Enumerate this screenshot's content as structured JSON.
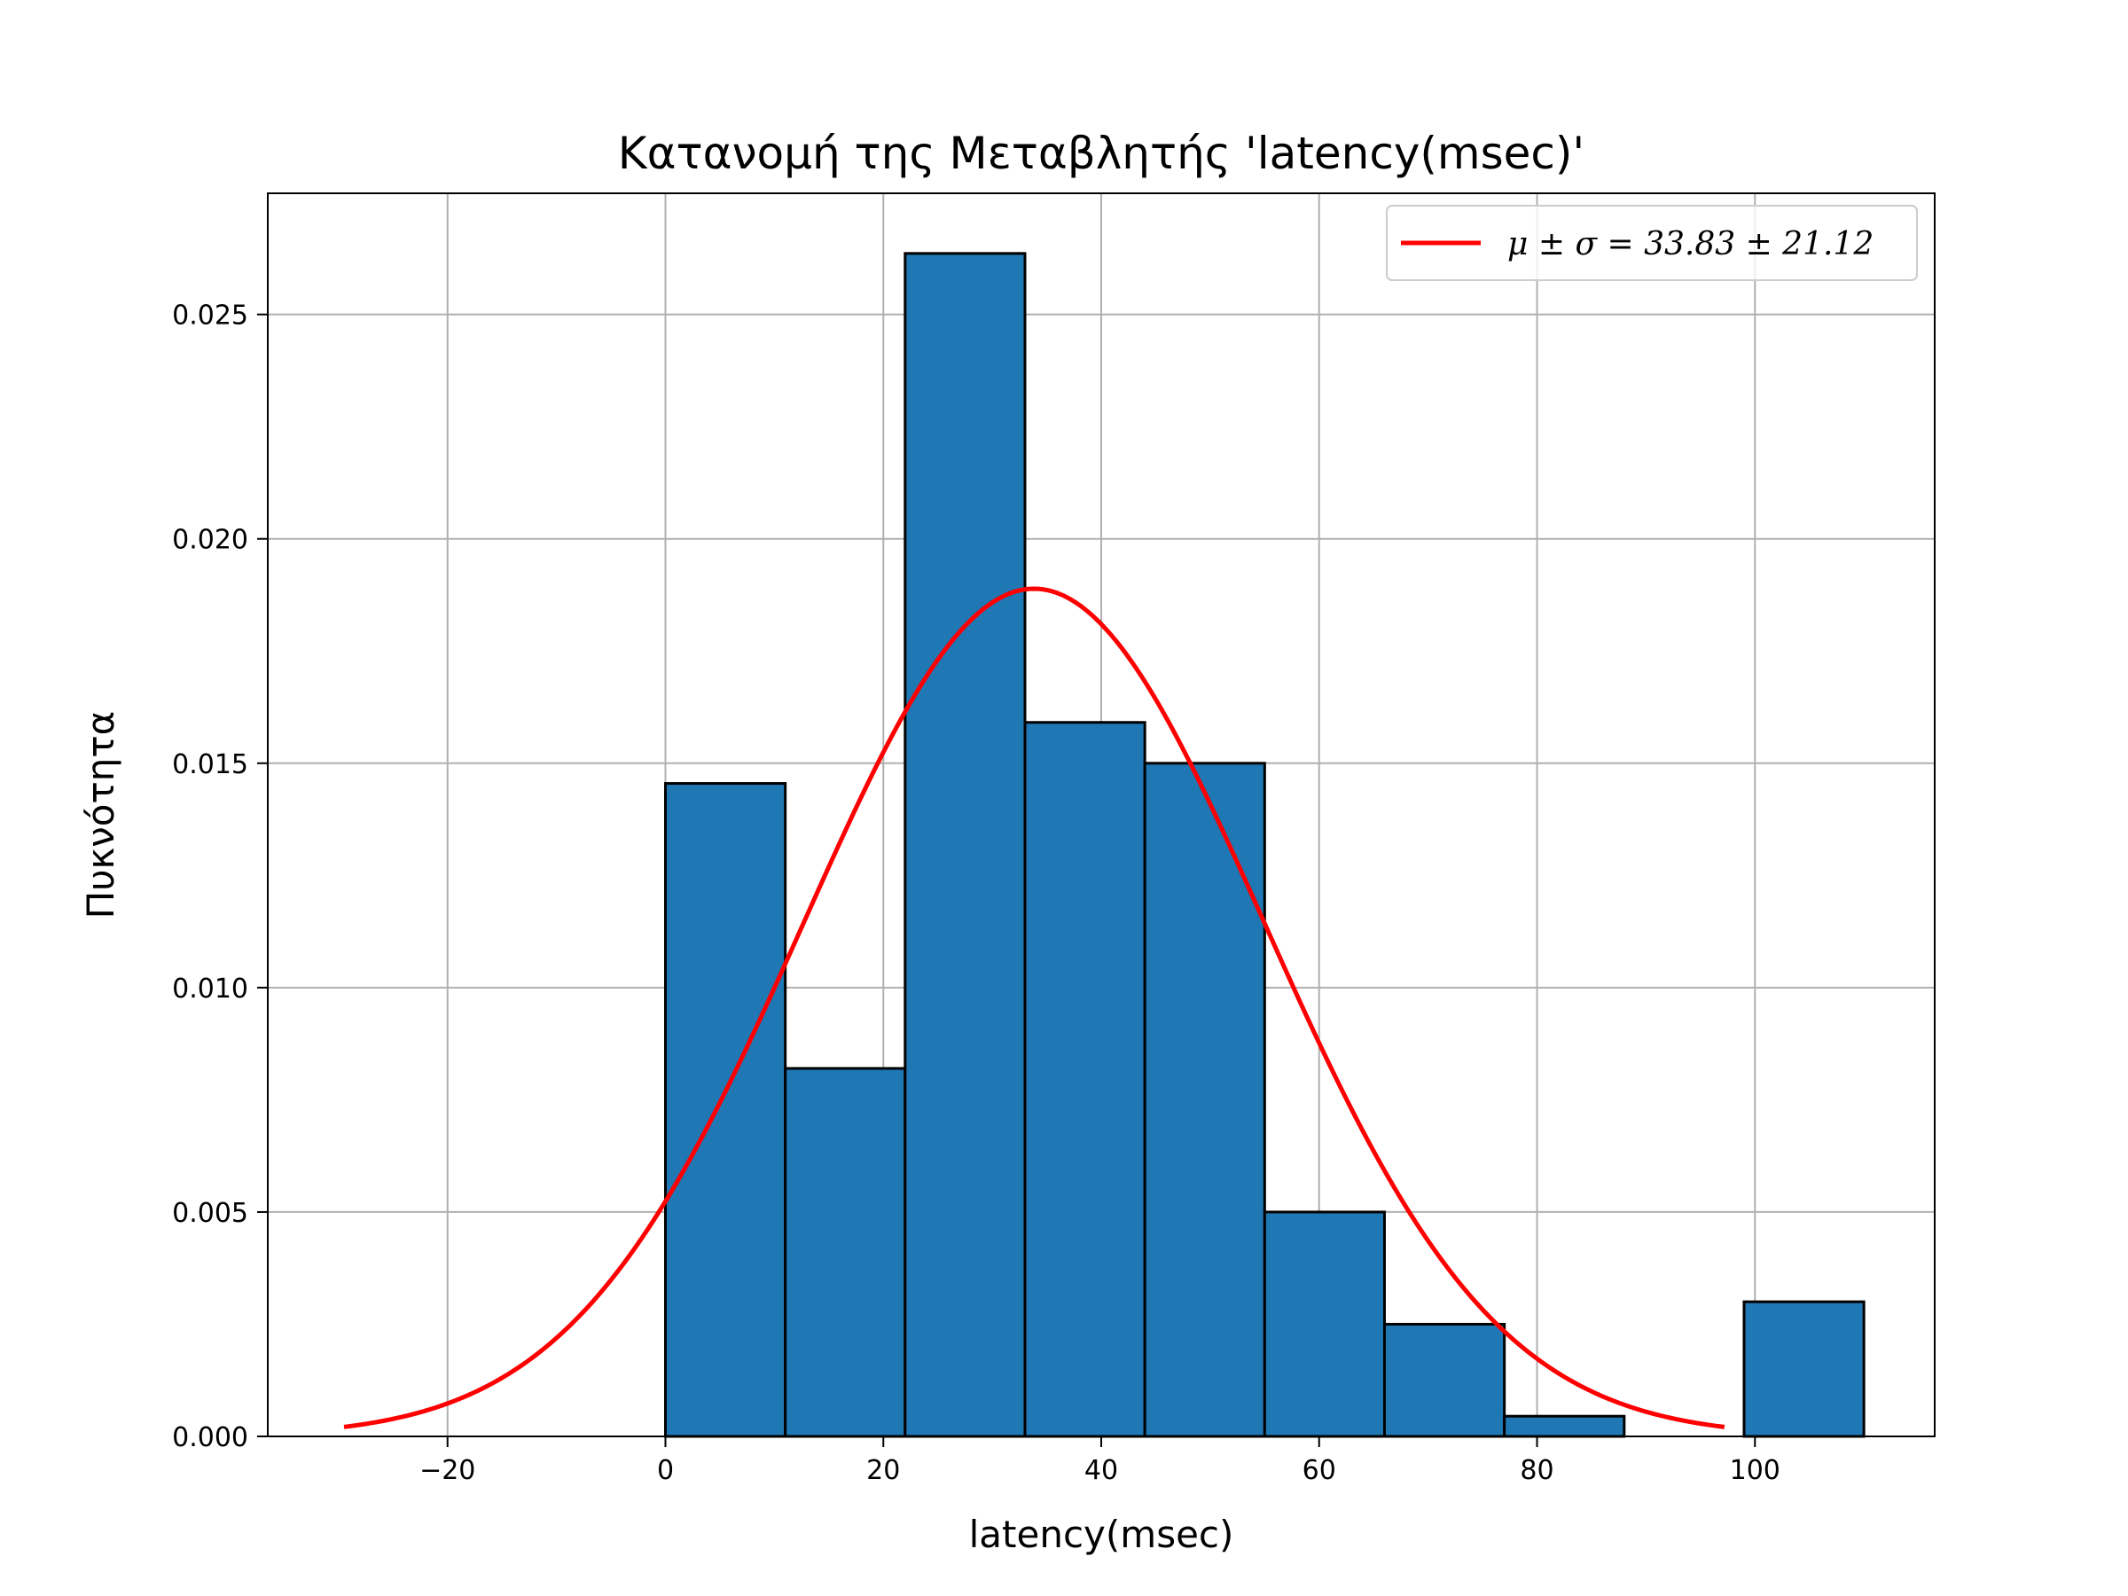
{
  "chart_data": {
    "type": "bar",
    "title": "Κατανομή της Μεταβλητής 'latency(msec)'",
    "xlabel": "latency(msec)",
    "ylabel": "Πυκνότητα",
    "xlim": [
      -36.5,
      116.5
    ],
    "ylim": [
      0,
      0.0277
    ],
    "xticks": [
      -20,
      0,
      20,
      40,
      60,
      80,
      100
    ],
    "xtick_labels": [
      "−20",
      "0",
      "20",
      "40",
      "60",
      "80",
      "100"
    ],
    "yticks": [
      0,
      0.005,
      0.01,
      0.015,
      0.02,
      0.025
    ],
    "ytick_labels": [
      "0.000",
      "0.005",
      "0.010",
      "0.015",
      "0.020",
      "0.025"
    ],
    "grid": true,
    "legend_position": "top-right",
    "histogram": {
      "bin_edges": [
        0,
        11,
        22,
        33,
        44,
        55,
        66,
        77,
        88,
        99,
        110
      ],
      "density": [
        0.01455,
        0.0082,
        0.02636,
        0.01591,
        0.015,
        0.005,
        0.0025,
        0.00045,
        0,
        0.003
      ],
      "color": "#1f77b4",
      "edge_color": "#000000"
    },
    "fit_curve": {
      "type": "normal_pdf",
      "mean": 33.83,
      "std": 21.12,
      "x_range": [
        -29.5,
        97.2
      ],
      "color": "#ff0000",
      "legend_label": "μ ± σ = 33.83 ± 21.12"
    }
  }
}
